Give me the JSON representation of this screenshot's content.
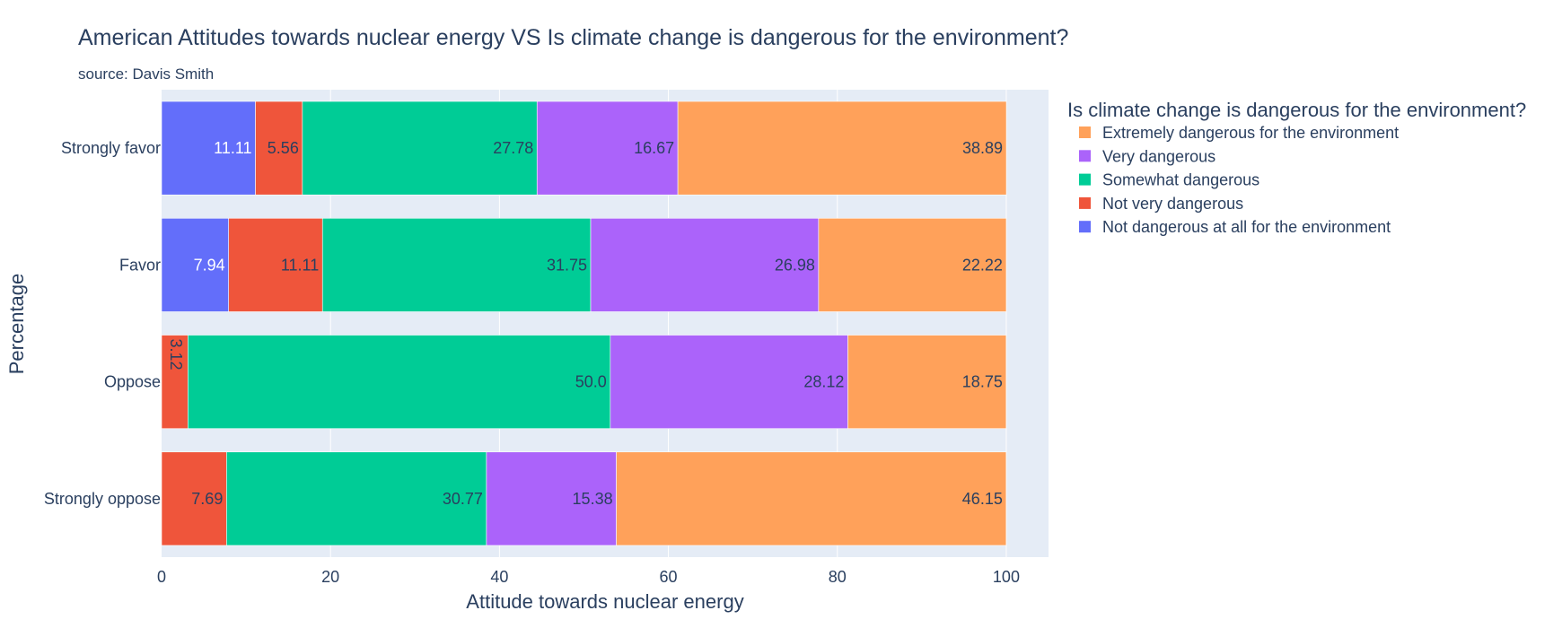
{
  "chart_data": {
    "type": "bar",
    "orientation": "horizontal",
    "barmode": "stack",
    "title": "American Attitudes towards nuclear energy VS Is climate change is dangerous for the environment?",
    "subtitle": "source: Davis Smith",
    "xlabel": "Attitude towards nuclear energy",
    "ylabel": "Percentage",
    "xlim": [
      0,
      105
    ],
    "xticks": [
      0,
      20,
      40,
      60,
      80,
      100
    ],
    "grid": true,
    "legend_placement": "right",
    "legend_title": "Is climate change is dangerous for the environment?",
    "categories": [
      "Strongly favor",
      "Favor",
      "Oppose",
      "Strongly oppose"
    ],
    "series": [
      {
        "name": "Not dangerous at all for the environment",
        "color": "#636efa",
        "label_color": "#ffffff",
        "values": [
          11.11,
          7.94,
          0,
          0
        ]
      },
      {
        "name": "Not very dangerous",
        "color": "#ef553b",
        "label_color": "#2a3f5f",
        "values": [
          5.56,
          11.11,
          3.12,
          7.69
        ]
      },
      {
        "name": "Somewhat dangerous",
        "color": "#00cc96",
        "label_color": "#2a3f5f",
        "values": [
          27.78,
          31.75,
          50.0,
          30.77
        ]
      },
      {
        "name": "Very dangerous",
        "color": "#ab63fa",
        "label_color": "#2a3f5f",
        "values": [
          16.67,
          26.98,
          28.12,
          15.38
        ]
      },
      {
        "name": "Extremely dangerous for the environment",
        "color": "#ffa15a",
        "label_color": "#2a3f5f",
        "values": [
          38.89,
          22.22,
          18.75,
          46.15
        ]
      }
    ],
    "value_labels": [
      [
        "11.11",
        "5.56",
        "27.78",
        "16.67",
        "38.89"
      ],
      [
        "7.94",
        "11.11",
        "31.75",
        "26.98",
        "22.22"
      ],
      [
        "",
        "3.12",
        "50.0",
        "28.12",
        "18.75"
      ],
      [
        "",
        "7.69",
        "30.77",
        "15.38",
        "46.15"
      ]
    ],
    "legend_order": [
      4,
      3,
      2,
      1,
      0
    ]
  }
}
